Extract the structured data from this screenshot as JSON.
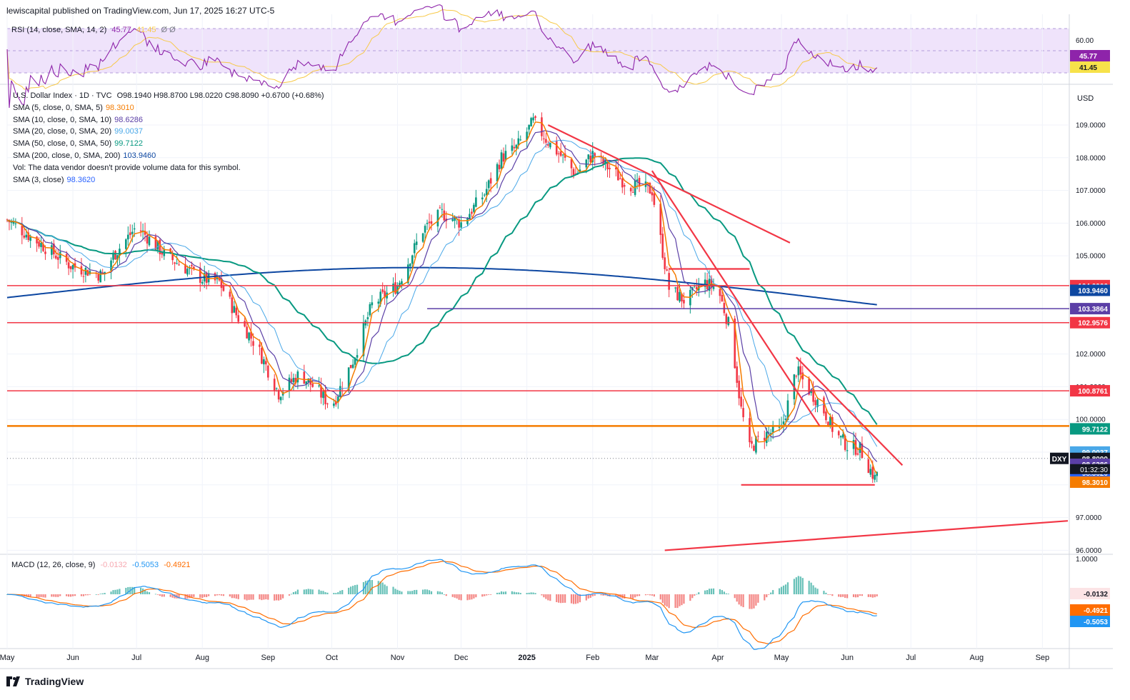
{
  "header": {
    "publisher": "lewiscapital published on TradingView.com, Jun 17, 2025 16:27 UTC-5"
  },
  "brand": {
    "name": "TradingView"
  },
  "rsi": {
    "label": "RSI (14, close, SMA, 14, 2)",
    "value": "45.77",
    "sma": "41.45",
    "extra": "Ø Ø",
    "scale_labels": [
      "60.00"
    ],
    "badges": [
      "45.77",
      "41.45"
    ]
  },
  "price_legend": {
    "title": "U.S. Dollar Index · 1D · TVC",
    "ohlc": "O98.1940 H98.8700 L98.0220 C98.8090 +0.6700 (+0.68%)",
    "lines": [
      {
        "label": "SMA (5, close, 0, SMA, 5)",
        "value": "98.3010",
        "color": "#f57c00"
      },
      {
        "label": "SMA (10, close, 0, SMA, 10)",
        "value": "98.6286",
        "color": "#5b3fa6"
      },
      {
        "label": "SMA (20, close, 0, SMA, 20)",
        "value": "99.0037",
        "color": "#4aa8e8"
      },
      {
        "label": "SMA (50, close, 0, SMA, 50)",
        "value": "99.7122",
        "color": "#089981"
      },
      {
        "label": "SMA (200, close, 0, SMA, 200)",
        "value": "103.9460",
        "color": "#0d47a1"
      },
      {
        "label": "Vol: The data vendor doesn't provide volume data for this symbol.",
        "value": "",
        "color": "#131722"
      },
      {
        "label": "SMA (3, close)",
        "value": "98.3620",
        "color": "#2962ff"
      }
    ]
  },
  "currency": "USD",
  "symbol": "DXY",
  "countdown": "01:32:30",
  "macd": {
    "label": "MACD (12, 26, close, 9)",
    "hist": "-0.0132",
    "macd": "-0.5053",
    "signal": "-0.4921",
    "scale_labels": [
      "1.0000"
    ]
  },
  "colors": {
    "up": "#089981",
    "down": "#f23645",
    "sma5": "#f57c00",
    "sma10": "#5b3fa6",
    "sma20": "#4aa8e8",
    "sma50": "#089981",
    "sma200": "#0d47a1",
    "trend": "#f23645",
    "rsi": "#8e24aa",
    "rsi_sma": "#f7c948",
    "macd": "#2196f3",
    "signal": "#ff6d00"
  },
  "chart_data": {
    "type": "candlestick",
    "symbol": "DXY",
    "ylim": [
      95.9,
      110.2
    ],
    "y_ticks": [
      "96.0000",
      "97.0000",
      "98.0000",
      "99.0000",
      "100.0000",
      "101.0000",
      "102.0000",
      "103.0000",
      "104.0000",
      "105.0000",
      "106.0000",
      "107.0000",
      "108.0000",
      "109.0000"
    ],
    "x_ticks": [
      "May",
      "Jun",
      "Jul",
      "Aug",
      "Sep",
      "Oct",
      "Nov",
      "Dec",
      "2025",
      "Feb",
      "Mar",
      "Apr",
      "May",
      "Jun",
      "Jul",
      "Aug",
      "Sep"
    ],
    "x_tick_day": [
      0,
      31,
      61,
      92,
      123,
      153,
      184,
      214,
      245,
      276,
      304,
      335,
      365,
      396,
      426,
      457,
      488
    ],
    "last_day": 412,
    "key_points": [
      [
        0,
        106.1
      ],
      [
        15,
        105.4
      ],
      [
        30,
        104.7
      ],
      [
        45,
        104.4
      ],
      [
        50,
        105.0
      ],
      [
        61,
        105.9
      ],
      [
        75,
        105.0
      ],
      [
        92,
        104.3
      ],
      [
        100,
        104.2
      ],
      [
        108,
        103.2
      ],
      [
        118,
        102.2
      ],
      [
        128,
        100.8
      ],
      [
        138,
        101.4
      ],
      [
        146,
        100.9
      ],
      [
        153,
        100.4
      ],
      [
        163,
        101.8
      ],
      [
        172,
        103.5
      ],
      [
        184,
        104.1
      ],
      [
        196,
        105.8
      ],
      [
        205,
        106.3
      ],
      [
        214,
        106.0
      ],
      [
        225,
        106.9
      ],
      [
        233,
        108.0
      ],
      [
        240,
        108.3
      ],
      [
        248,
        109.1
      ],
      [
        256,
        108.4
      ],
      [
        262,
        108.0
      ],
      [
        268,
        107.5
      ],
      [
        276,
        108.1
      ],
      [
        285,
        107.6
      ],
      [
        292,
        107.2
      ],
      [
        304,
        107.0
      ],
      [
        312,
        104.0
      ],
      [
        320,
        103.6
      ],
      [
        328,
        104.2
      ],
      [
        335,
        104.0
      ],
      [
        341,
        102.7
      ],
      [
        346,
        100.3
      ],
      [
        350,
        99.1
      ],
      [
        356,
        99.5
      ],
      [
        365,
        99.7
      ],
      [
        372,
        101.5
      ],
      [
        378,
        100.9
      ],
      [
        384,
        100.4
      ],
      [
        390,
        99.6
      ],
      [
        396,
        99.2
      ],
      [
        402,
        99.1
      ],
      [
        405,
        98.7
      ],
      [
        409,
        98.2
      ],
      [
        412,
        98.8
      ]
    ],
    "latest": {
      "open": 98.194,
      "high": 98.87,
      "low": 98.022,
      "close": 98.809
    },
    "horizontal_levels": [
      {
        "value": 104.0906,
        "label": "104.0906",
        "color": "#f23645"
      },
      {
        "value": 103.3864,
        "label": "103.3864",
        "color": "#5b3fa6"
      },
      {
        "value": 102.9576,
        "label": "102.9576",
        "color": "#f23645"
      },
      {
        "value": 100.8761,
        "label": "100.8761",
        "color": "#f23645"
      },
      {
        "value": 99.8,
        "label": "",
        "color": "#f57c00"
      }
    ],
    "right_labels": [
      {
        "value": 99.7122,
        "label": "99.7122",
        "bg": "#089981"
      },
      {
        "value": 99.0037,
        "label": "99.0037",
        "bg": "#4aa8e8"
      },
      {
        "value": 98.809,
        "label": "98.8090",
        "bg": "#131722"
      },
      {
        "value": 98.6286,
        "label": "98.6286",
        "bg": "#5b3fa6"
      },
      {
        "value": 98.362,
        "label": "98.3620",
        "bg": "#2962ff"
      },
      {
        "value": 98.301,
        "label": "98.3010",
        "bg": "#f57c00"
      },
      {
        "value": 103.946,
        "label": "103.9460",
        "bg": "#0d47a1"
      }
    ],
    "trendlines": [
      {
        "from": [
          255,
          109.0
        ],
        "to": [
          369,
          105.4
        ]
      },
      {
        "from": [
          304,
          107.6
        ],
        "to": [
          383,
          99.8
        ]
      },
      {
        "from": [
          372,
          101.9
        ],
        "to": [
          422,
          98.6
        ]
      },
      {
        "from": [
          346,
          98.0
        ],
        "to": [
          409,
          98.0
        ]
      },
      {
        "from": [
          310,
          96.0
        ],
        "to": [
          500,
          96.9
        ]
      },
      {
        "from": [
          312,
          104.6
        ],
        "to": [
          350,
          104.6
        ]
      }
    ]
  }
}
